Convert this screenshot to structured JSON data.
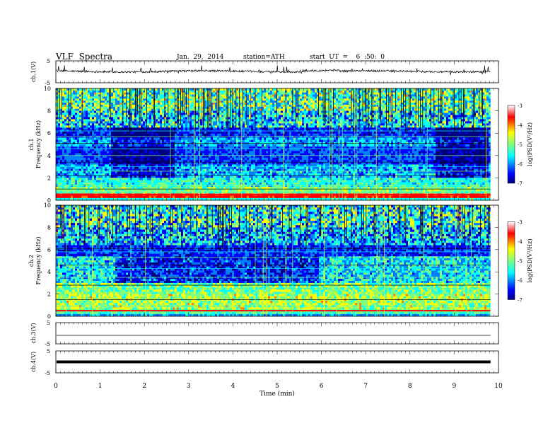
{
  "header": {
    "title": "VLF  Spectra",
    "date": "Jan.  29,  2014",
    "station": "station=ATH",
    "start": "start  UT  =    6  :50:  0"
  },
  "colors": {
    "jet": [
      "#00007f",
      "#0000ff",
      "#007fff",
      "#00ffff",
      "#7fff7f",
      "#ffff00",
      "#ff7f00",
      "#ff0000",
      "#7f0000"
    ],
    "trace": "#000000"
  },
  "chart_data": [
    {
      "type": "line",
      "name": "ch1-waveform",
      "ylabel": "ch.1(V)",
      "ylim": [
        -5,
        5
      ],
      "yticks": [
        "5",
        "-5"
      ],
      "description_level": 0.2
    },
    {
      "type": "heatmap",
      "name": "ch1-spectrogram",
      "ylabel": "Frequency  (kHz)",
      "channel_label": "ch.1",
      "ylim": [
        0,
        10
      ],
      "yticks": [
        "0",
        "2",
        "4",
        "6",
        "8",
        "10"
      ],
      "colorbar": {
        "label": "log(PSD(V²/Hz)",
        "ticks": [
          "-3",
          "-4",
          "-5",
          "-6",
          "-7"
        ],
        "range": [
          -7,
          -3
        ]
      }
    },
    {
      "type": "heatmap",
      "name": "ch2-spectrogram",
      "ylabel": "Frequency  (kHz)",
      "channel_label": "ch.2",
      "ylim": [
        0,
        10
      ],
      "yticks": [
        "0",
        "2",
        "4",
        "6",
        "8",
        "10"
      ],
      "colorbar": {
        "label": "log(PSD(V²/Hz)",
        "ticks": [
          "-3",
          "-4",
          "-5",
          "-6",
          "-7"
        ],
        "range": [
          -7,
          -3
        ]
      }
    },
    {
      "type": "line",
      "name": "ch3-waveform",
      "ylabel": "ch.3(V)",
      "ylim": [
        -5,
        5
      ],
      "yticks": [
        "5",
        "-5"
      ],
      "level": -1
    },
    {
      "type": "line",
      "name": "ch4-waveform",
      "ylabel": "ch.4(V)",
      "ylim": [
        -5,
        5
      ],
      "yticks": [
        "5",
        "-5"
      ],
      "level": 0
    }
  ],
  "xaxis": {
    "label": "Time  (min)",
    "xlim": [
      0,
      10
    ],
    "ticks": [
      "0",
      "1",
      "2",
      "3",
      "4",
      "5",
      "6",
      "7",
      "8",
      "9",
      "10"
    ],
    "data_end": 9.82
  }
}
